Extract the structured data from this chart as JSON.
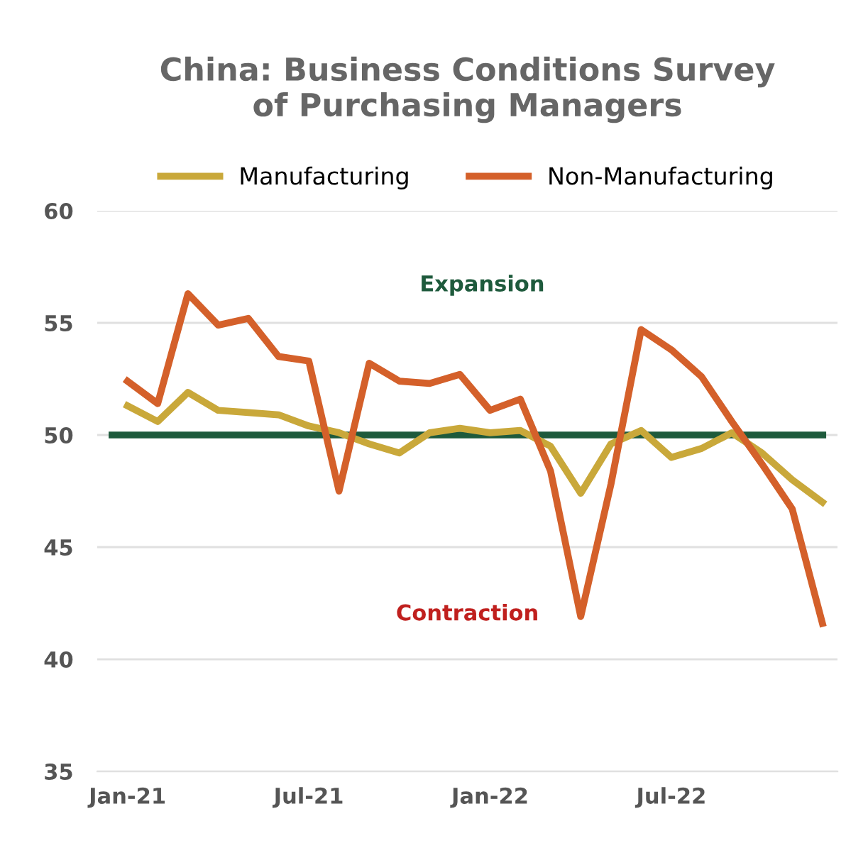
{
  "chart_data": {
    "type": "line",
    "title": "China: Business Conditions Survey\nof Purchasing Managers",
    "categories": [
      "Jan-21",
      null,
      null,
      null,
      null,
      null,
      "Jul-21",
      null,
      null,
      null,
      null,
      null,
      "Jan-22",
      null,
      null,
      null,
      null,
      null,
      "Jul-22",
      null,
      null,
      null,
      null,
      null
    ],
    "series": [
      {
        "name": "Manufacturing",
        "color": "#c9a83a",
        "values": [
          51.3,
          50.6,
          51.9,
          51.1,
          51.0,
          50.9,
          50.4,
          50.1,
          49.6,
          49.2,
          50.1,
          50.3,
          50.1,
          50.2,
          49.5,
          47.4,
          49.6,
          50.2,
          49.0,
          49.4,
          50.1,
          49.2,
          48.0,
          47.0
        ]
      },
      {
        "name": "Non-Manufacturing",
        "color": "#d4602a",
        "values": [
          52.4,
          51.4,
          56.3,
          54.9,
          55.2,
          53.5,
          53.3,
          47.5,
          53.2,
          52.4,
          52.3,
          52.7,
          51.1,
          51.6,
          48.4,
          41.9,
          47.8,
          54.7,
          53.8,
          52.6,
          50.6,
          48.7,
          46.7,
          41.6
        ]
      }
    ],
    "ylim": [
      35,
      60
    ],
    "yticks": [
      35,
      40,
      45,
      50,
      55,
      60
    ],
    "grid": "y",
    "legend": "top",
    "marker": "none",
    "line_style": "solid",
    "ref_lines": [
      {
        "axis": "y",
        "value": 50,
        "color": "#1e5a3c"
      }
    ],
    "annotations": [
      "Expansion",
      "Contraction"
    ]
  }
}
